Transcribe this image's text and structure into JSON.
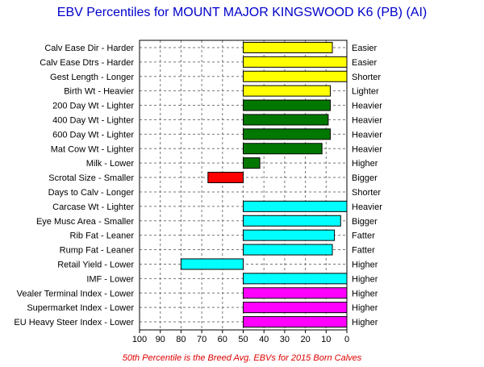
{
  "chart_data": {
    "type": "bar",
    "title": "EBV Percentiles for MOUNT MAJOR KINGSWOOD K6 (PB) (AI)",
    "footnote": "50th Percentile is the Breed Avg. EBVs for 2015 Born Calves",
    "xlim": [
      100,
      0
    ],
    "baseline": 50,
    "xticks": [
      100,
      90,
      80,
      70,
      60,
      50,
      40,
      30,
      20,
      10,
      0
    ],
    "grid": true,
    "colors": {
      "yellow": "#ffff00",
      "green": "#007700",
      "red": "#ff0000",
      "cyan": "#00ffff",
      "magenta": "#ff00ff"
    },
    "traits": [
      {
        "left": "Calv Ease Dir - Harder",
        "right": "Easier",
        "value": 7,
        "color": "yellow"
      },
      {
        "left": "Calv Ease Dtrs - Harder",
        "right": "Easier",
        "value": 0,
        "color": "yellow"
      },
      {
        "left": "Gest Length - Longer",
        "right": "Shorter",
        "value": 0,
        "color": "yellow"
      },
      {
        "left": "Birth Wt - Heavier",
        "right": "Lighter",
        "value": 8,
        "color": "yellow"
      },
      {
        "left": "200 Day Wt - Lighter",
        "right": "Heavier",
        "value": 8,
        "color": "green"
      },
      {
        "left": "400 Day Wt - Lighter",
        "right": "Heavier",
        "value": 9,
        "color": "green"
      },
      {
        "left": "600 Day Wt - Lighter",
        "right": "Heavier",
        "value": 8,
        "color": "green"
      },
      {
        "left": "Mat Cow Wt - Lighter",
        "right": "Heavier",
        "value": 12,
        "color": "green"
      },
      {
        "left": "Milk - Lower",
        "right": "Higher",
        "value": 42,
        "color": "green"
      },
      {
        "left": "Scrotal Size - Smaller",
        "right": "Bigger",
        "value": 67,
        "color": "red"
      },
      {
        "left": "Days to Calv - Longer",
        "right": "Shorter",
        "value": null,
        "color": "red"
      },
      {
        "left": "Carcase Wt - Lighter",
        "right": "Heavier",
        "value": 0,
        "color": "cyan"
      },
      {
        "left": "Eye Musc Area - Smaller",
        "right": "Bigger",
        "value": 3,
        "color": "cyan"
      },
      {
        "left": "Rib Fat - Leaner",
        "right": "Fatter",
        "value": 6,
        "color": "cyan"
      },
      {
        "left": "Rump Fat - Leaner",
        "right": "Fatter",
        "value": 7,
        "color": "cyan"
      },
      {
        "left": "Retail Yield - Lower",
        "right": "Higher",
        "value": 80,
        "color": "cyan"
      },
      {
        "left": "IMF - Lower",
        "right": "Higher",
        "value": 0,
        "color": "cyan"
      },
      {
        "left": "Vealer Terminal Index - Lower",
        "right": "Higher",
        "value": 0,
        "color": "magenta"
      },
      {
        "left": "Supermarket Index - Lower",
        "right": "Higher",
        "value": 0,
        "color": "magenta"
      },
      {
        "left": "EU Heavy Steer Index - Lower",
        "right": "Higher",
        "value": 0,
        "color": "magenta"
      }
    ]
  }
}
